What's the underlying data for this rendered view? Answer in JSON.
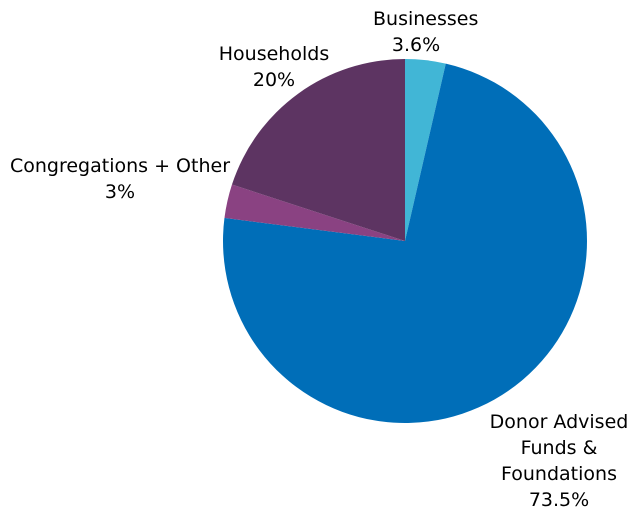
{
  "chart_data": {
    "type": "pie",
    "title": "",
    "start_category": "Businesses",
    "direction": "clockwise",
    "slices": [
      {
        "name": "Businesses",
        "label_lines": [
          "Businesses",
          "3.6%"
        ],
        "value": 3.6,
        "color": "#41B6D6"
      },
      {
        "name": "Donor Advised Funds & Foundations",
        "label_lines": [
          "Donor Advised",
          "Funds &",
          "Foundations",
          "73.5%"
        ],
        "value": 73.5,
        "color": "#006EB8"
      },
      {
        "name": "Congregations + Other",
        "label_lines": [
          "Congregations + Other",
          "3%"
        ],
        "value": 3.0,
        "color": "#8A4282"
      },
      {
        "name": "Households",
        "label_lines": [
          "Households",
          "20%"
        ],
        "value": 20.0,
        "color": "#5D3462"
      }
    ]
  }
}
